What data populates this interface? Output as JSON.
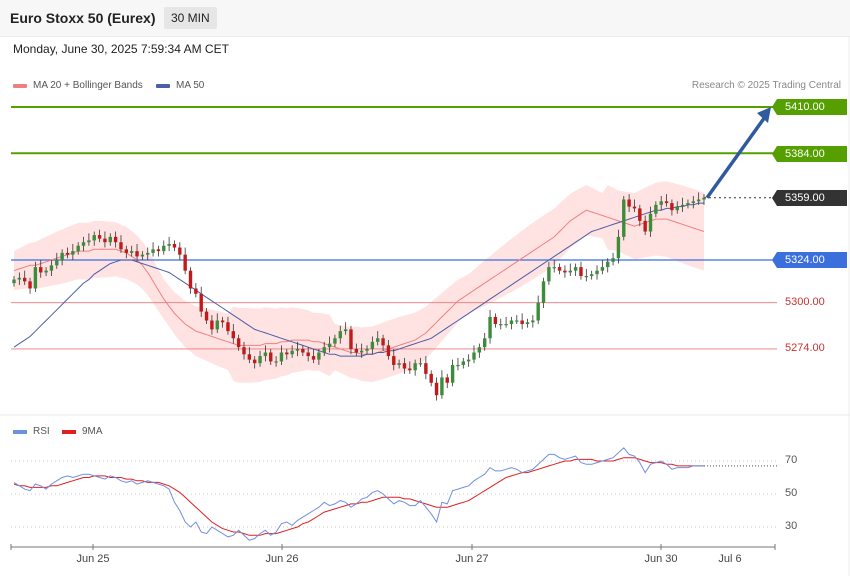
{
  "header": {
    "title": "Euro Stoxx 50 (Eurex)",
    "timeframe": "30 MIN"
  },
  "datetime": "Monday, June 30, 2025 7:59:34 AM CET",
  "legend": {
    "ma20_label": "MA 20 + Bollinger Bands",
    "ma50_label": "MA 50",
    "credit": "Research © 2025 Trading Central"
  },
  "colors": {
    "up": "#3c8c3c",
    "down": "#c21a1a",
    "ma20": "#f08080",
    "band_fill": "#ffdede",
    "ma50": "#4a5fa5",
    "resistance": "#55a000",
    "support": "#3b6fdc",
    "minor": "#e46060",
    "current": "#333333",
    "rsi": "#6f8fe0",
    "rsi_ma": "#e02020",
    "arrow": "#2f5b9e"
  },
  "chart_data": [
    {
      "type": "candlestick",
      "x_ticks": [
        "Jun 25",
        "Jun 26",
        "Jun 27",
        "Jun 30",
        "Jul 6"
      ],
      "ylim": [
        5200,
        5420
      ],
      "levels": [
        {
          "value": 5410,
          "label": "5410.00",
          "kind": "resistance"
        },
        {
          "value": 5384,
          "label": "5384.00",
          "kind": "resistance"
        },
        {
          "value": 5359,
          "label": "5359.00",
          "kind": "current"
        },
        {
          "value": 5324,
          "label": "5324.00",
          "kind": "support"
        },
        {
          "value": 5300,
          "label": "5300.00",
          "kind": "minor"
        },
        {
          "value": 5274,
          "label": "5274.00",
          "kind": "minor"
        }
      ],
      "arrow": {
        "from": 5359,
        "to": 5410
      },
      "close": [
        5313,
        5314,
        5312,
        5308,
        5320,
        5317,
        5318,
        5321,
        5324,
        5328,
        5327,
        5329,
        5332,
        5334,
        5335,
        5338,
        5336,
        5334,
        5337,
        5334,
        5330,
        5328,
        5329,
        5326,
        5327,
        5328,
        5330,
        5329,
        5332,
        5333,
        5331,
        5327,
        5318,
        5308,
        5305,
        5295,
        5290,
        5285,
        5290,
        5289,
        5284,
        5280,
        5275,
        5271,
        5268,
        5266,
        5270,
        5272,
        5267,
        5267,
        5272,
        5271,
        5273,
        5274,
        5272,
        5270,
        5268,
        5272,
        5275,
        5277,
        5280,
        5284,
        5285,
        5274,
        5272,
        5273,
        5274,
        5278,
        5280,
        5276,
        5270,
        5265,
        5266,
        5263,
        5262,
        5266,
        5266,
        5260,
        5255,
        5248,
        5258,
        5255,
        5265,
        5265,
        5267,
        5268,
        5272,
        5275,
        5280,
        5292,
        5288,
        5288,
        5288,
        5290,
        5290,
        5288,
        5289,
        5290,
        5300,
        5312,
        5320,
        5320,
        5318,
        5317,
        5318,
        5320,
        5315,
        5315,
        5316,
        5318,
        5320,
        5323,
        5325,
        5337,
        5358,
        5354,
        5353,
        5346,
        5340,
        5350,
        5355,
        5357,
        5356,
        5352,
        5354,
        5355,
        5356,
        5357,
        5358,
        5359
      ],
      "ma20": [
        5318,
        5319,
        5320,
        5321,
        5321,
        5322,
        5323,
        5324,
        5325,
        5326,
        5327,
        5328,
        5329,
        5329,
        5329,
        5330,
        5330,
        5330,
        5330,
        5330,
        5329,
        5328,
        5326,
        5324,
        5321,
        5317,
        5312,
        5307,
        5302,
        5298,
        5294,
        5291,
        5288,
        5286,
        5284,
        5283,
        5282,
        5281,
        5280,
        5279,
        5278,
        5277,
        5276,
        5276,
        5276,
        5276,
        5276,
        5277,
        5277,
        5277,
        5278,
        5278,
        5279,
        5279,
        5279,
        5279,
        5278,
        5278,
        5277,
        5276,
        5275,
        5274,
        5273,
        5272,
        5272,
        5271,
        5271,
        5271,
        5272,
        5273,
        5274,
        5275,
        5276,
        5277,
        5278,
        5279,
        5281,
        5283,
        5286,
        5289,
        5292,
        5295,
        5298,
        5301,
        5303,
        5305,
        5307,
        5309,
        5311,
        5313,
        5315,
        5317,
        5319,
        5321,
        5323,
        5325,
        5327,
        5329,
        5331,
        5333,
        5335,
        5337,
        5340,
        5343,
        5346,
        5348,
        5350,
        5352,
        5351,
        5350,
        5349,
        5348,
        5347,
        5346,
        5345,
        5344,
        5343,
        5344,
        5345,
        5346,
        5347,
        5347,
        5347,
        5346,
        5345,
        5344,
        5343,
        5342,
        5341,
        5340
      ],
      "ma50": [
        5275,
        5277,
        5279,
        5281,
        5284,
        5287,
        5290,
        5293,
        5296,
        5299,
        5302,
        5305,
        5308,
        5311,
        5313,
        5316,
        5318,
        5320,
        5322,
        5323,
        5324,
        5324,
        5324,
        5323,
        5322,
        5321,
        5320,
        5319,
        5318,
        5317,
        5315,
        5313,
        5311,
        5309,
        5307,
        5305,
        5303,
        5301,
        5299,
        5297,
        5295,
        5293,
        5291,
        5289,
        5287,
        5285,
        5284,
        5283,
        5282,
        5281,
        5280,
        5279,
        5278,
        5277,
        5276,
        5275,
        5274,
        5273,
        5272,
        5271,
        5271,
        5270,
        5270,
        5270,
        5270,
        5270,
        5271,
        5271,
        5272,
        5272,
        5273,
        5273,
        5274,
        5275,
        5276,
        5277,
        5278,
        5279,
        5280,
        5282,
        5284,
        5286,
        5288,
        5290,
        5292,
        5294,
        5296,
        5298,
        5300,
        5302,
        5304,
        5306,
        5308,
        5310,
        5312,
        5314,
        5316,
        5318,
        5320,
        5322,
        5324,
        5326,
        5328,
        5330,
        5332,
        5334,
        5336,
        5338,
        5340,
        5341,
        5342,
        5343,
        5344,
        5345,
        5346,
        5347,
        5348,
        5349,
        5350,
        5351,
        5352,
        5352,
        5353,
        5353,
        5354,
        5354,
        5355,
        5355,
        5356,
        5356
      ]
    },
    {
      "type": "line",
      "title": "",
      "x_ticks": [
        "Jun 25",
        "Jun 26",
        "Jun 27",
        "Jun 30",
        "Jul 6"
      ],
      "ylim": [
        20,
        80
      ],
      "y_ticks": [
        30,
        50,
        70
      ],
      "series": [
        {
          "name": "RSI",
          "values": [
            57,
            55,
            53,
            52,
            56,
            55,
            53,
            56,
            58,
            60,
            61,
            60,
            61,
            62,
            62,
            61,
            60,
            59,
            61,
            60,
            58,
            57,
            58,
            56,
            57,
            58,
            57,
            56,
            55,
            53,
            45,
            40,
            33,
            30,
            33,
            27,
            26,
            30,
            28,
            26,
            24,
            25,
            28,
            25,
            22,
            23,
            26,
            28,
            25,
            27,
            32,
            33,
            31,
            34,
            36,
            38,
            40,
            42,
            45,
            43,
            44,
            46,
            45,
            42,
            44,
            47,
            48,
            51,
            52,
            50,
            47,
            44,
            46,
            45,
            43,
            43,
            46,
            42,
            38,
            33,
            45,
            44,
            52,
            53,
            54,
            55,
            58,
            60,
            62,
            66,
            64,
            64,
            65,
            66,
            65,
            63,
            64,
            65,
            68,
            71,
            74,
            74,
            72,
            71,
            72,
            73,
            69,
            68,
            68,
            69,
            70,
            71,
            72,
            75,
            78,
            74,
            73,
            69,
            63,
            68,
            69,
            70,
            68,
            65,
            66,
            66,
            66,
            67,
            67,
            67
          ]
        },
        {
          "name": "9MA",
          "values": [
            56,
            55,
            55,
            54,
            54,
            54,
            54,
            55,
            55,
            56,
            57,
            58,
            59,
            60,
            60,
            61,
            61,
            61,
            60,
            60,
            60,
            59,
            59,
            58,
            58,
            57,
            57,
            57,
            56,
            55,
            53,
            51,
            48,
            45,
            42,
            39,
            36,
            33,
            31,
            29,
            28,
            27,
            27,
            26,
            25,
            25,
            25,
            26,
            26,
            26,
            27,
            28,
            29,
            30,
            32,
            33,
            35,
            37,
            39,
            40,
            41,
            42,
            43,
            44,
            44,
            45,
            45,
            46,
            47,
            48,
            48,
            48,
            48,
            47,
            47,
            46,
            45,
            44,
            43,
            42,
            42,
            42,
            43,
            44,
            45,
            46,
            48,
            50,
            52,
            54,
            56,
            58,
            60,
            61,
            62,
            63,
            63,
            64,
            65,
            66,
            67,
            68,
            69,
            70,
            70,
            71,
            71,
            71,
            71,
            70,
            70,
            70,
            70,
            71,
            72,
            72,
            72,
            71,
            70,
            69,
            69,
            69,
            68,
            68,
            67,
            67,
            67,
            67,
            67,
            67
          ]
        }
      ]
    }
  ]
}
